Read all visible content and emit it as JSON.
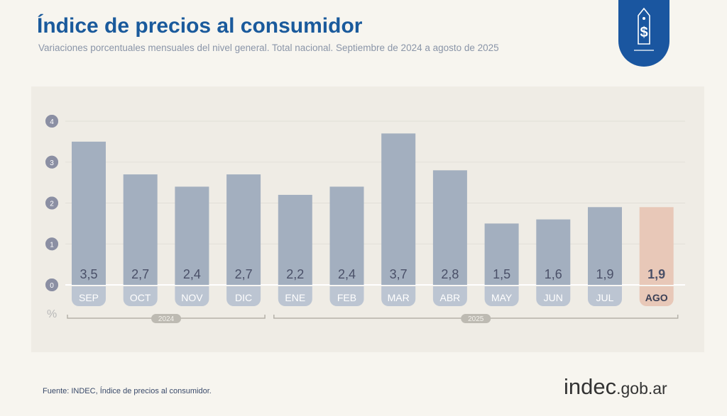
{
  "header": {
    "title": "Índice de precios al consumidor",
    "subtitle": "Variaciones porcentuales mensuales del nivel general. Total nacional. Septiembre de 2024 a agosto de 2025",
    "icon": "price-tag-dollar-icon"
  },
  "footer": {
    "source": "Fuente: INDEC, Índice de precios al consumidor.",
    "logo_main": "indec",
    "logo_suffix": ".gob.ar"
  },
  "chart_data": {
    "type": "bar",
    "title": "",
    "xlabel": "",
    "ylabel": "%",
    "categories": [
      "SEP",
      "OCT",
      "NOV",
      "DIC",
      "ENE",
      "FEB",
      "MAR",
      "ABR",
      "MAY",
      "JUN",
      "JUL",
      "AGO"
    ],
    "values": [
      3.5,
      2.7,
      2.4,
      2.7,
      2.2,
      2.4,
      3.7,
      2.8,
      1.5,
      1.6,
      1.9,
      1.9
    ],
    "labels": [
      "3,5",
      "2,7",
      "2,4",
      "2,7",
      "2,2",
      "2,4",
      "3,7",
      "2,8",
      "1,5",
      "1,6",
      "1,9",
      "1,9"
    ],
    "yticks": [
      0,
      1,
      2,
      3,
      4
    ],
    "ylim": [
      0,
      4
    ],
    "grid": true,
    "year_groups": [
      {
        "label": "2024",
        "from": 0,
        "to": 3
      },
      {
        "label": "2025",
        "from": 4,
        "to": 11
      }
    ],
    "highlight_index": 11,
    "colors": {
      "bar": "#a3afbf",
      "highlight": "#e8c8b8",
      "tick_marker": "#8b8fa3",
      "title": "#1a5a9c"
    }
  }
}
